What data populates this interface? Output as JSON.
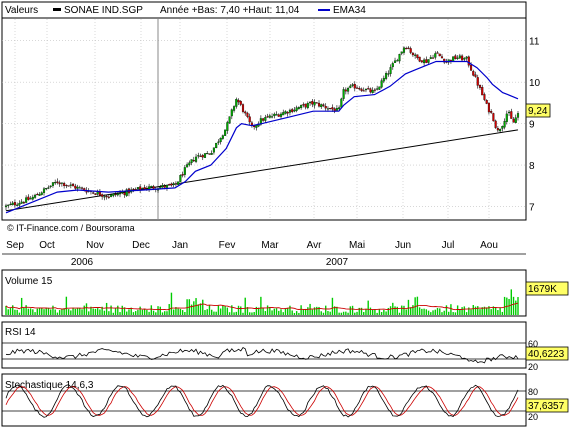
{
  "header": {
    "values_label": "Valeurs",
    "series_name": "SONAE IND.SGP",
    "stats": "Année +Bas: 7,40 +Haut: 11,04",
    "ema_label": "EMA34"
  },
  "colors": {
    "candle_up": "#00aa00",
    "candle_down": "#cc0000",
    "ema": "#0000cc",
    "trend": "#000000",
    "volume": "#00cc00",
    "volume_ma": "#cc0000",
    "rsi": "#000000",
    "stoch_k": "#000000",
    "stoch_d": "#cc0000",
    "badge_bg": "#ffff66",
    "grid": "#c0c0c0"
  },
  "chart_data": [
    {
      "type": "candlestick",
      "title": "",
      "series_name": "SONAE IND.SGP",
      "ylim": [
        6.7,
        11.5
      ],
      "yticks": [
        7,
        8,
        9,
        10,
        11
      ],
      "last_value_label": "9,24",
      "x_month_labels": [
        "Sep",
        "Oct",
        "Nov",
        "Dec",
        "Jan",
        "Fev",
        "Mar",
        "Avr",
        "Mai",
        "Jun",
        "Jul",
        "Aou"
      ],
      "x_year_labels": [
        "2006",
        "2007"
      ],
      "copyright": "© IT-Finance.com / Boursorama",
      "close_profile_x": [
        0,
        0.05,
        0.1,
        0.14,
        0.2,
        0.27,
        0.33,
        0.35,
        0.37,
        0.4,
        0.43,
        0.45,
        0.46,
        0.48,
        0.5,
        0.55,
        0.6,
        0.65,
        0.66,
        0.68,
        0.72,
        0.75,
        0.78,
        0.8,
        0.82,
        0.84,
        0.86,
        0.88,
        0.9,
        0.92,
        0.94,
        0.95,
        0.96,
        0.97,
        0.98,
        0.99,
        1.0
      ],
      "close_profile_y": [
        7.0,
        7.2,
        7.6,
        7.45,
        7.25,
        7.45,
        7.5,
        7.9,
        8.2,
        8.3,
        8.9,
        9.6,
        9.4,
        8.9,
        9.1,
        9.3,
        9.5,
        9.3,
        9.8,
        9.9,
        9.75,
        10.3,
        10.9,
        10.6,
        10.5,
        10.7,
        10.5,
        10.6,
        10.55,
        10.0,
        9.4,
        9.2,
        8.8,
        9.0,
        9.3,
        9.0,
        9.24
      ],
      "ema34_y": [
        6.85,
        7.1,
        7.35,
        7.4,
        7.35,
        7.4,
        7.45,
        7.6,
        7.85,
        8.0,
        8.4,
        8.9,
        9.0,
        8.95,
        9.0,
        9.15,
        9.3,
        9.3,
        9.45,
        9.65,
        9.7,
        9.9,
        10.2,
        10.3,
        10.4,
        10.5,
        10.5,
        10.5,
        10.5,
        10.35,
        10.1,
        9.95,
        9.85,
        9.75,
        9.7,
        9.65,
        9.6
      ],
      "trendline": {
        "start": [
          0,
          6.9
        ],
        "end": [
          1,
          8.85
        ]
      }
    },
    {
      "type": "bar",
      "title": "Volume 15",
      "last_value_label": "1679K"
    },
    {
      "type": "line",
      "title": "RSI 14",
      "ylim": [
        20,
        80
      ],
      "yticks": [
        20,
        60
      ],
      "last_value_label": "40,6223"
    },
    {
      "type": "line",
      "title": "Stochastique 14,6,3",
      "ylim": [
        20,
        80
      ],
      "yticks": [
        20,
        80
      ],
      "last_value_label": "37,6357"
    }
  ]
}
